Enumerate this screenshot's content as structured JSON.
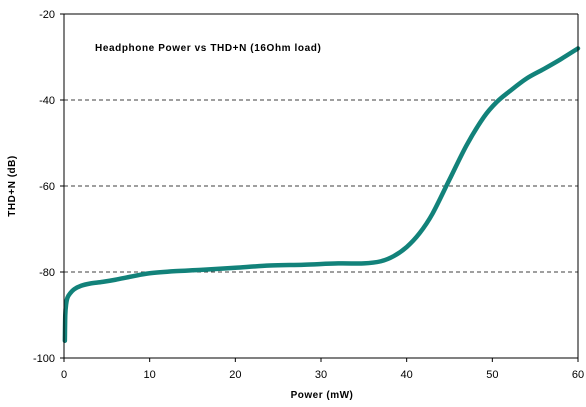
{
  "chart_data": {
    "type": "line",
    "title": "Headphone Power vs THD+N (16Ohm load)",
    "xlabel": "Power (mW)",
    "ylabel": "THD+N (dB)",
    "xlim": [
      0,
      60
    ],
    "ylim": [
      -100,
      -20
    ],
    "xticks": [
      0,
      10,
      20,
      30,
      40,
      50,
      60
    ],
    "yticks": [
      -100,
      -80,
      -60,
      -40,
      -20
    ],
    "xtick_labels": [
      "0",
      "10",
      "20",
      "30",
      "40",
      "50",
      "60"
    ],
    "ytick_labels": [
      "-100",
      "-80",
      "-60",
      "-40",
      "-20"
    ],
    "grid": "horizontal dashed at -80, -60, -40",
    "line_color": "#12827a",
    "series": [
      {
        "x": [
          0.1,
          0.15,
          0.25,
          0.4,
          0.7,
          1.2,
          2,
          3,
          4.5,
          6,
          8,
          10,
          13,
          16,
          20,
          24,
          28,
          32,
          35,
          37,
          38.5,
          40,
          41.5,
          43,
          45,
          47,
          49,
          50.5,
          52,
          54,
          56,
          58,
          60
        ],
        "y": [
          -96,
          -90,
          -87.5,
          -86,
          -85,
          -84,
          -83.2,
          -82.7,
          -82.3,
          -81.8,
          -81,
          -80.3,
          -79.8,
          -79.5,
          -79,
          -78.5,
          -78.3,
          -78,
          -78,
          -77.5,
          -76.3,
          -74.2,
          -71,
          -66.5,
          -58.5,
          -50.5,
          -44,
          -40.5,
          -38,
          -35,
          -32.8,
          -30.5,
          -28
        ]
      }
    ]
  }
}
